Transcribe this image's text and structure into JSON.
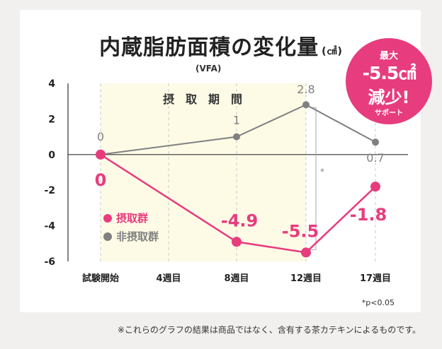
{
  "title": "内蔵脂肪面積の変化量",
  "title_unit": "(㎠)",
  "subtitle": "(VFA)",
  "period_label": "摂　取　期　間",
  "badge": {
    "line1": "最大",
    "line2": "-5.5㎠",
    "line3": "減少!",
    "line4": "サポート",
    "color": "#e73c7e"
  },
  "significance_mark": "*",
  "p_note": "*p<0.05",
  "footnote": "※これらのグラフの結果は商品ではなく、含有する茶カテキンによるものです。",
  "chart_data": {
    "type": "line",
    "categories": [
      "試験開始",
      "4週目",
      "8週目",
      "12週目",
      "17週目"
    ],
    "ylim": [
      -6,
      4
    ],
    "yticks": [
      "4",
      "2",
      "0",
      "-2",
      "-4",
      "-6"
    ],
    "legend_position": "bottom-left",
    "series": [
      {
        "name": "摂取群",
        "color": "#e73c7e",
        "points": [
          {
            "x": "試験開始",
            "y": 0,
            "label": "0"
          },
          {
            "x": "8週目",
            "y": -4.9,
            "label": "-4.9"
          },
          {
            "x": "12週目",
            "y": -5.5,
            "label": "-5.5"
          },
          {
            "x": "17週目",
            "y": -1.8,
            "label": "-1.8"
          }
        ]
      },
      {
        "name": "非摂取群",
        "color": "#808080",
        "points": [
          {
            "x": "試験開始",
            "y": 0,
            "label": "0"
          },
          {
            "x": "8週目",
            "y": 1,
            "label": "1"
          },
          {
            "x": "12週目",
            "y": 2.8,
            "label": "2.8"
          },
          {
            "x": "17週目",
            "y": 0.7,
            "label": "0.7"
          }
        ]
      }
    ]
  }
}
